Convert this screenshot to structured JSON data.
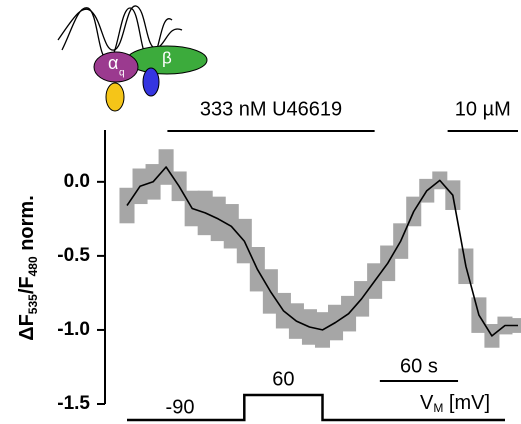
{
  "chart_data": {
    "type": "line",
    "ylabel": {
      "main": "ΔF",
      "sub1": "535",
      "mid": "/F",
      "sub2": "480",
      "end": " norm."
    },
    "x": [
      0,
      10,
      20,
      30,
      40,
      50,
      60,
      70,
      80,
      90,
      100,
      110,
      120,
      130,
      140,
      150,
      160,
      170,
      180,
      190,
      200,
      210,
      220,
      230,
      240,
      250,
      260,
      270,
      280,
      290,
      300
    ],
    "series": [
      {
        "color": "#000000",
        "error_color": "#a6a6a6",
        "values": [
          -0.16,
          -0.03,
          0.0,
          0.1,
          -0.03,
          -0.18,
          -0.21,
          -0.25,
          -0.3,
          -0.4,
          -0.59,
          -0.74,
          -0.87,
          -0.94,
          -0.98,
          -1.0,
          -0.95,
          -0.89,
          -0.79,
          -0.67,
          -0.55,
          -0.4,
          -0.2,
          -0.06,
          0.01,
          -0.09,
          -0.57,
          -0.9,
          -1.04,
          -0.97,
          -0.97
        ],
        "errors": [
          0.12,
          0.12,
          0.12,
          0.12,
          0.1,
          0.12,
          0.15,
          0.15,
          0.15,
          0.15,
          0.15,
          0.15,
          0.12,
          0.12,
          0.12,
          0.12,
          0.12,
          0.12,
          0.12,
          0.12,
          0.12,
          0.12,
          0.1,
          0.08,
          0.06,
          0.1,
          0.12,
          0.12,
          0.08,
          0.06,
          0.05
        ]
      }
    ],
    "xlim": [
      0,
      300
    ],
    "ylim": [
      -1.5,
      0.35
    ],
    "yticks": [
      {
        "value": 0,
        "label": "0.0"
      },
      -0.5,
      {
        "value": -1,
        "label": "-1.0"
      },
      -1.5
    ],
    "annotations": [
      {
        "text": "333 nM U46619",
        "start": 31,
        "end": 190
      },
      {
        "text": "10 µM",
        "start": 246,
        "end": 300
      }
    ],
    "scale_bar": {
      "label": "60 s",
      "start": 194,
      "length": 60
    },
    "protocol": {
      "hold_label": "-90",
      "step_label": "60",
      "step_start": 90,
      "step_end": 150,
      "label_main": "V",
      "label_sub": "M",
      "label_unit": " [mV]"
    },
    "cartoon": {
      "alpha": "α",
      "alpha_sub": "q",
      "beta": "β"
    }
  }
}
